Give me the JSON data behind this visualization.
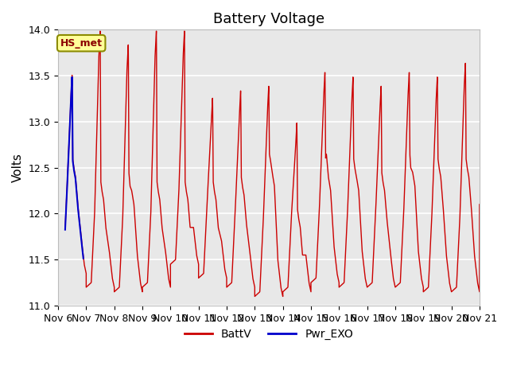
{
  "title": "Battery Voltage",
  "ylabel": "Volts",
  "xlabel": "",
  "ylim": [
    11.0,
    14.0
  ],
  "yticks": [
    11.0,
    11.5,
    12.0,
    12.5,
    13.0,
    13.5,
    14.0
  ],
  "x_tick_labels": [
    "Nov 6",
    "Nov 7",
    "Nov 8",
    "Nov 9",
    "Nov 10",
    "Nov 11",
    "Nov 12",
    "Nov 13",
    "Nov 14",
    "Nov 15",
    "Nov 16",
    "Nov 17",
    "Nov 18",
    "Nov 19",
    "Nov 20",
    "Nov 21"
  ],
  "plot_bg_color": "#e8e8e8",
  "fig_bg_color": "#ffffff",
  "grid_color": "#ffffff",
  "line_batt_color": "#cc0000",
  "line_exo_color": "#0000cc",
  "legend_batt_label": "BattV",
  "legend_exo_label": "Pwr_EXO",
  "station_label": "HS_met",
  "station_box_facecolor": "#ffff99",
  "station_box_edgecolor": "#8b8b00",
  "title_fontsize": 13,
  "label_fontsize": 11,
  "tick_fontsize": 9
}
